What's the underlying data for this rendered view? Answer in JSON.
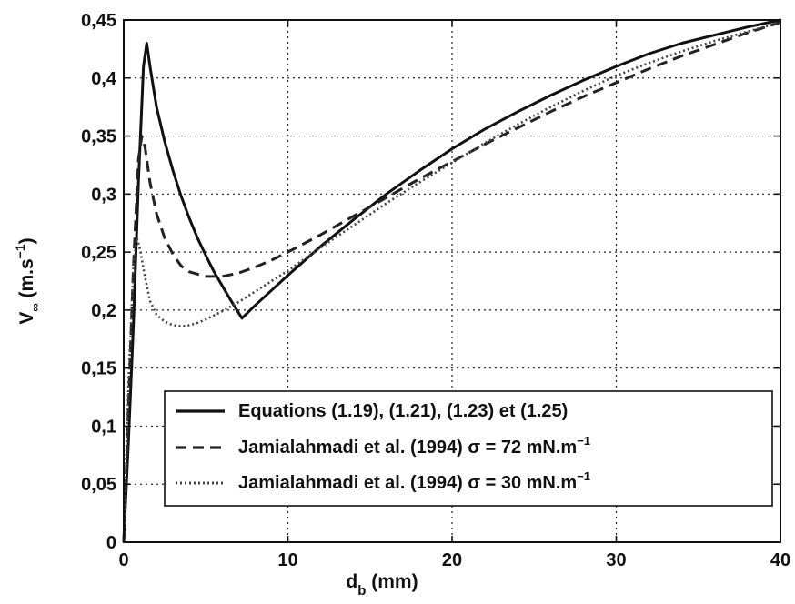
{
  "chart_data": {
    "type": "line",
    "xlabel_main": "d",
    "xlabel_sub": "b",
    "xlabel_unit": " (mm)",
    "ylabel_main": "V",
    "ylabel_sub": "∞",
    "ylabel_unit": " (m.s",
    "ylabel_sup": "−1",
    "ylabel_close": ")",
    "xlim": [
      0,
      40
    ],
    "ylim": [
      0,
      0.45
    ],
    "xticks": [
      0,
      10,
      20,
      30,
      40
    ],
    "xtick_labels": [
      "0",
      "10",
      "20",
      "30",
      "40"
    ],
    "yticks": [
      0,
      0.05,
      0.1,
      0.15,
      0.2,
      0.25,
      0.3,
      0.35,
      0.4,
      0.45
    ],
    "ytick_labels": [
      "0",
      "0,05",
      "0,1",
      "0,15",
      "0,2",
      "0,25",
      "0,3",
      "0,35",
      "0,4",
      "0,45"
    ],
    "grid": true,
    "legend_position": "bottom-right",
    "series": [
      {
        "name": "Equations (1.19), (1.21), (1.23) et (1.25)",
        "style": "solid",
        "color": "#111111",
        "x": [
          0,
          0.3,
          0.6,
          0.9,
          1.2,
          1.4,
          1.6,
          2.0,
          2.5,
          3.0,
          3.5,
          4.0,
          4.5,
          5.0,
          5.5,
          6.0,
          6.5,
          7.2,
          8,
          9,
          10,
          12,
          14,
          16,
          18,
          20,
          22,
          24,
          26,
          28,
          30,
          32,
          34,
          36,
          38,
          40
        ],
        "y": [
          0,
          0.09,
          0.19,
          0.31,
          0.41,
          0.43,
          0.41,
          0.375,
          0.345,
          0.32,
          0.298,
          0.279,
          0.262,
          0.247,
          0.233,
          0.221,
          0.209,
          0.193,
          0.204,
          0.217,
          0.23,
          0.255,
          0.278,
          0.3,
          0.32,
          0.339,
          0.356,
          0.371,
          0.385,
          0.398,
          0.41,
          0.421,
          0.43,
          0.437,
          0.444,
          0.45
        ]
      },
      {
        "name": "Jamialahmadi et al. (1994) σ = 72 mN.m",
        "name_sup": "−1",
        "style": "dashed",
        "color": "#222222",
        "x": [
          0,
          0.3,
          0.6,
          0.9,
          1.1,
          1.3,
          1.6,
          2,
          2.5,
          3,
          3.5,
          4,
          5,
          6,
          7,
          8,
          9,
          10,
          12,
          14,
          16,
          18,
          20,
          22,
          24,
          26,
          28,
          30,
          32,
          34,
          36,
          38,
          40
        ],
        "y": [
          0,
          0.12,
          0.24,
          0.33,
          0.35,
          0.34,
          0.31,
          0.283,
          0.262,
          0.248,
          0.238,
          0.233,
          0.229,
          0.229,
          0.232,
          0.237,
          0.243,
          0.25,
          0.265,
          0.281,
          0.297,
          0.313,
          0.328,
          0.343,
          0.357,
          0.371,
          0.384,
          0.396,
          0.408,
          0.419,
          0.429,
          0.439,
          0.448
        ]
      },
      {
        "name": "Jamialahmadi et al. (1994) σ = 30 mN.m",
        "name_sup": "−1",
        "style": "dotted",
        "color": "#444444",
        "x": [
          0,
          0.3,
          0.6,
          0.8,
          1.0,
          1.3,
          1.6,
          2,
          2.5,
          3,
          3.5,
          4,
          4.5,
          5,
          6,
          7,
          8,
          9,
          10,
          12,
          14,
          16,
          18,
          20,
          22,
          24,
          26,
          28,
          30,
          32,
          34,
          36,
          38,
          40
        ],
        "y": [
          0,
          0.14,
          0.24,
          0.262,
          0.252,
          0.228,
          0.208,
          0.196,
          0.19,
          0.187,
          0.186,
          0.187,
          0.189,
          0.192,
          0.199,
          0.207,
          0.216,
          0.225,
          0.234,
          0.254,
          0.273,
          0.292,
          0.31,
          0.327,
          0.344,
          0.36,
          0.375,
          0.389,
          0.402,
          0.413,
          0.423,
          0.432,
          0.44,
          0.448
        ]
      }
    ]
  }
}
